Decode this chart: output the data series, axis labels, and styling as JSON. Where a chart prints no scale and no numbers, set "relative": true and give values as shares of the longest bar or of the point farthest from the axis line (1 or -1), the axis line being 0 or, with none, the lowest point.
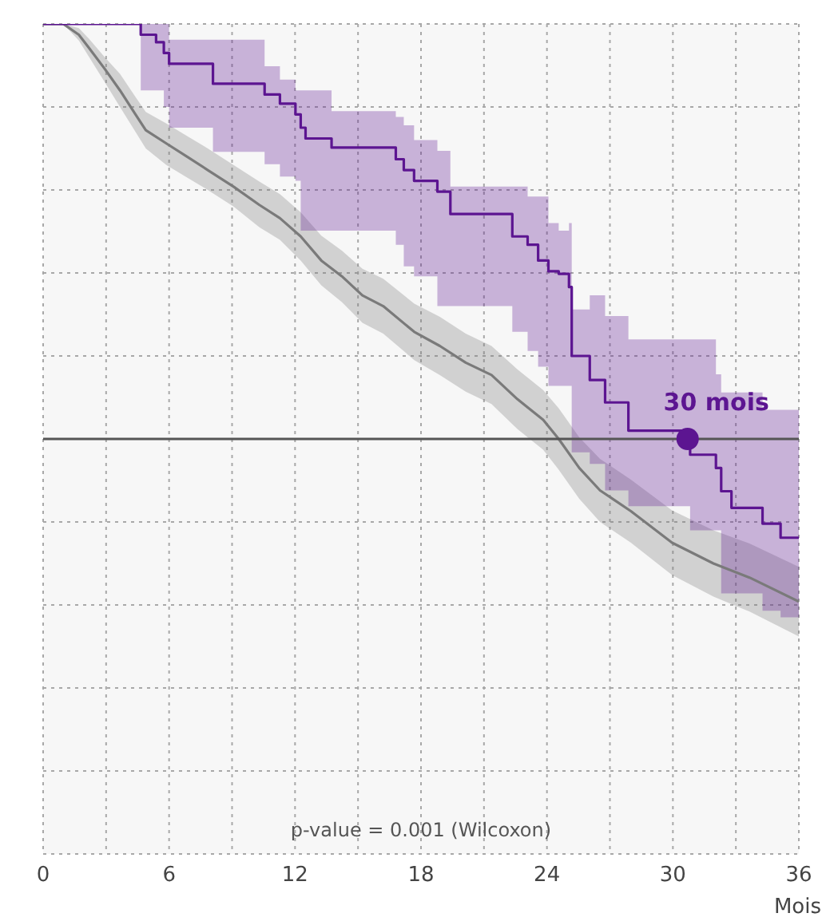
{
  "chart_data": {
    "type": "line",
    "relative": true,
    "xlabel": "Mois",
    "xlim": [
      0,
      36
    ],
    "xticks": [
      0,
      6,
      12,
      18,
      24,
      30,
      36
    ],
    "grid": true,
    "marker": "none",
    "series": [
      {
        "type": "line",
        "color": "#7a7a7a",
        "x": [
          0,
          0.96,
          1.7,
          2.19,
          2.93,
          3.66,
          4.4,
          4.89,
          5.87,
          6.86,
          7.84,
          9.07,
          10.3,
          11.28,
          12.27,
          13.25,
          14.23,
          15.21,
          16.2,
          17.68,
          18.9,
          20.13,
          21.36,
          22.59,
          23.82,
          24.56,
          25.54,
          26.53,
          28.0,
          29.96,
          31.93,
          33.65,
          36.0
        ],
        "values": [
          1,
          1,
          0.987,
          0.971,
          0.946,
          0.92,
          0.891,
          0.872,
          0.856,
          0.84,
          0.824,
          0.804,
          0.782,
          0.766,
          0.744,
          0.715,
          0.696,
          0.673,
          0.66,
          0.629,
          0.612,
          0.592,
          0.577,
          0.548,
          0.523,
          0.5,
          0.465,
          0.438,
          0.413,
          0.375,
          0.35,
          0.333,
          0.304
        ],
        "lower": [
          1,
          1,
          0.98,
          0.96,
          0.93,
          0.9,
          0.87,
          0.85,
          0.83,
          0.815,
          0.8,
          0.78,
          0.755,
          0.74,
          0.715,
          0.685,
          0.665,
          0.64,
          0.627,
          0.595,
          0.577,
          0.557,
          0.542,
          0.512,
          0.487,
          0.463,
          0.428,
          0.4,
          0.375,
          0.336,
          0.31,
          0.292,
          0.262
        ],
        "upper": [
          1,
          1,
          0.995,
          0.982,
          0.96,
          0.94,
          0.912,
          0.894,
          0.88,
          0.865,
          0.85,
          0.83,
          0.81,
          0.795,
          0.773,
          0.745,
          0.727,
          0.705,
          0.693,
          0.663,
          0.647,
          0.627,
          0.612,
          0.584,
          0.559,
          0.537,
          0.502,
          0.476,
          0.451,
          0.414,
          0.39,
          0.374,
          0.346
        ]
      },
      {
        "type": "step",
        "color": "#5c1591",
        "x": [
          0,
          4.65,
          5.38,
          5.75,
          6.0,
          8.09,
          10.55,
          11.28,
          12.02,
          12.27,
          12.5,
          13.74,
          16.8,
          17.18,
          17.67,
          18.78,
          19.4,
          22.35,
          23.08,
          23.58,
          24.07,
          24.56,
          25.05,
          25.18,
          26.04,
          26.77,
          27.88,
          30.82,
          32.05,
          32.3,
          32.79,
          34.27,
          35.13,
          36
        ],
        "values": [
          1,
          0.987,
          0.978,
          0.965,
          0.952,
          0.928,
          0.915,
          0.904,
          0.891,
          0.875,
          0.862,
          0.851,
          0.837,
          0.824,
          0.811,
          0.798,
          0.771,
          0.744,
          0.734,
          0.715,
          0.702,
          0.699,
          0.683,
          0.6,
          0.571,
          0.544,
          0.51,
          0.481,
          0.465,
          0.437,
          0.417,
          0.398,
          0.381,
          0.381
        ],
        "lower": [
          1,
          0.92,
          0.92,
          0.9,
          0.875,
          0.846,
          0.831,
          0.816,
          0.811,
          0.751,
          0.751,
          0.751,
          0.734,
          0.708,
          0.696,
          0.66,
          0.66,
          0.629,
          0.606,
          0.587,
          0.564,
          0.564,
          0.564,
          0.484,
          0.47,
          0.438,
          0.419,
          0.39,
          0.39,
          0.314,
          0.314,
          0.293,
          0.285,
          0.265
        ],
        "upper": [
          1,
          1,
          1,
          1,
          0.981,
          0.981,
          0.949,
          0.933,
          0.92,
          0.92,
          0.92,
          0.895,
          0.888,
          0.878,
          0.86,
          0.847,
          0.804,
          0.804,
          0.792,
          0.792,
          0.76,
          0.751,
          0.76,
          0.656,
          0.673,
          0.648,
          0.62,
          0.62,
          0.578,
          0.556,
          0.556,
          0.535,
          0.535,
          0.53
        ]
      }
    ],
    "ref_lines": [
      {
        "axis": "y",
        "value": 0.5,
        "color": "#555555"
      }
    ],
    "annotations": [
      {
        "text": "30 mois",
        "x": 30.7,
        "y": 0.5
      },
      "p-value = 0.001 (Wilcoxon)"
    ]
  }
}
